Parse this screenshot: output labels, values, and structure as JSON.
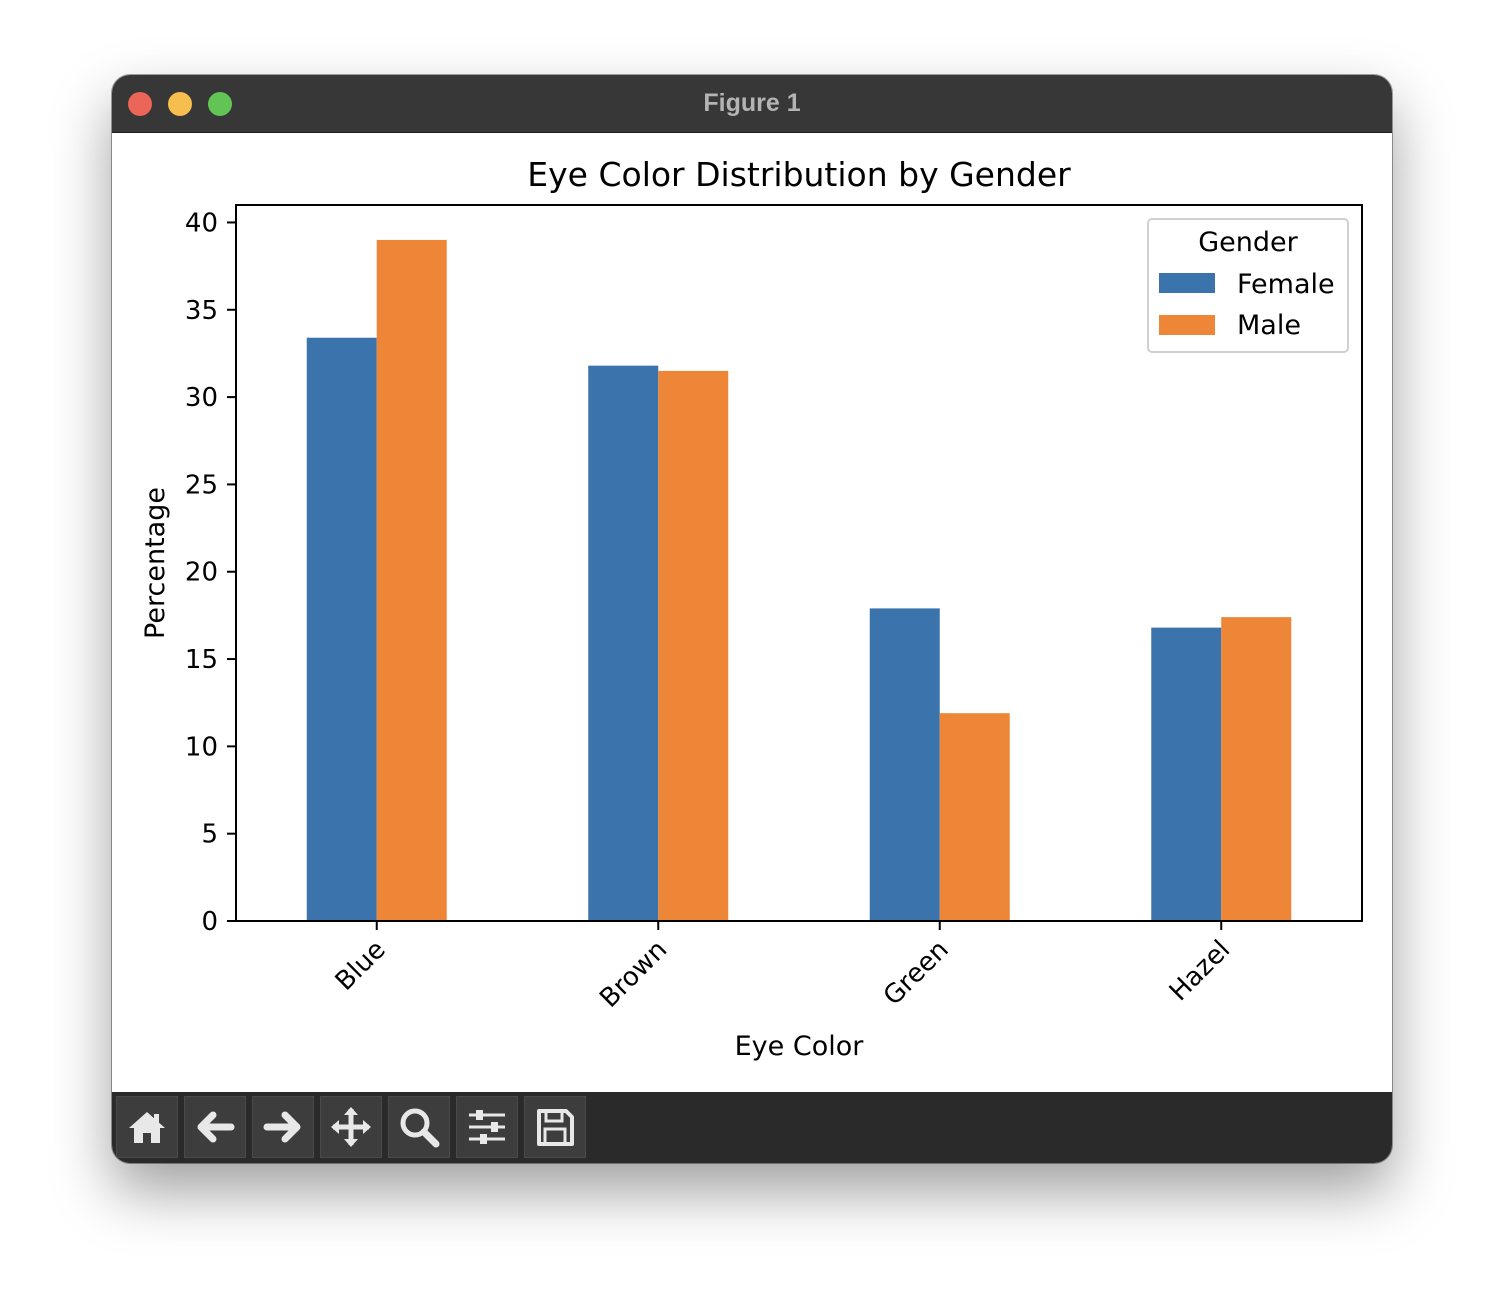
{
  "window": {
    "title": "Figure 1"
  },
  "toolbar": {
    "buttons": [
      {
        "icon": "home-icon"
      },
      {
        "icon": "back-arrow-icon"
      },
      {
        "icon": "forward-arrow-icon"
      },
      {
        "icon": "pan-icon"
      },
      {
        "icon": "zoom-icon"
      },
      {
        "icon": "configure-subplots-icon"
      },
      {
        "icon": "save-icon"
      }
    ]
  },
  "chart_data": {
    "type": "bar",
    "title": "Eye Color Distribution by Gender",
    "xlabel": "Eye Color",
    "ylabel": "Percentage",
    "categories": [
      "Blue",
      "Brown",
      "Green",
      "Hazel"
    ],
    "series": [
      {
        "name": "Female",
        "color": "#3b73ad",
        "values": [
          33.4,
          31.8,
          17.9,
          16.8
        ]
      },
      {
        "name": "Male",
        "color": "#ee8637",
        "values": [
          39.0,
          31.5,
          11.9,
          17.4
        ]
      }
    ],
    "ylim": [
      0,
      41
    ],
    "yticks": [
      0,
      5,
      10,
      15,
      20,
      25,
      30,
      35,
      40
    ],
    "xtick_rotation": 45,
    "grid": false,
    "legend": {
      "title": "Gender",
      "placement": "top-right"
    }
  }
}
